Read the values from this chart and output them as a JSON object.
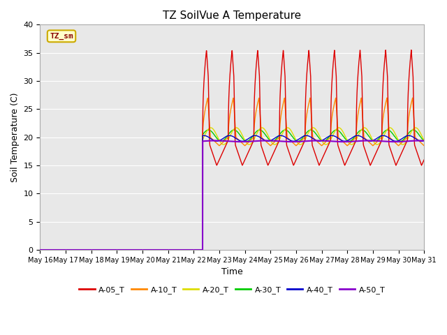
{
  "title": "TZ SoilVue A Temperature",
  "ylabel": "Soil Temperature (C)",
  "xlabel": "Time",
  "ylim": [
    0,
    40
  ],
  "bg_color": "#e8e8e8",
  "grid_color": "white",
  "annotation_text": "TZ_sm",
  "annotation_color": "#880000",
  "annotation_bg": "#ffffcc",
  "annotation_border": "#ccaa00",
  "start_day": 6.35,
  "x_tick_labels": [
    "May 16",
    "May 17",
    "May 18",
    "May 19",
    "May 20",
    "May 21",
    "May 22",
    "May 23",
    "May 24",
    "May 25",
    "May 26",
    "May 27",
    "May 28",
    "May 29",
    "May 30",
    "May 31"
  ],
  "series": {
    "A-05_T": {
      "color": "#dd0000",
      "linewidth": 1.0
    },
    "A-10_T": {
      "color": "#ff8800",
      "linewidth": 1.0
    },
    "A-20_T": {
      "color": "#dddd00",
      "linewidth": 1.0
    },
    "A-30_T": {
      "color": "#00cc00",
      "linewidth": 1.0
    },
    "A-40_T": {
      "color": "#0000cc",
      "linewidth": 1.0
    },
    "A-50_T": {
      "color": "#8800cc",
      "linewidth": 1.5
    }
  },
  "legend_order": [
    "A-05_T",
    "A-10_T",
    "A-20_T",
    "A-30_T",
    "A-40_T",
    "A-50_T"
  ]
}
